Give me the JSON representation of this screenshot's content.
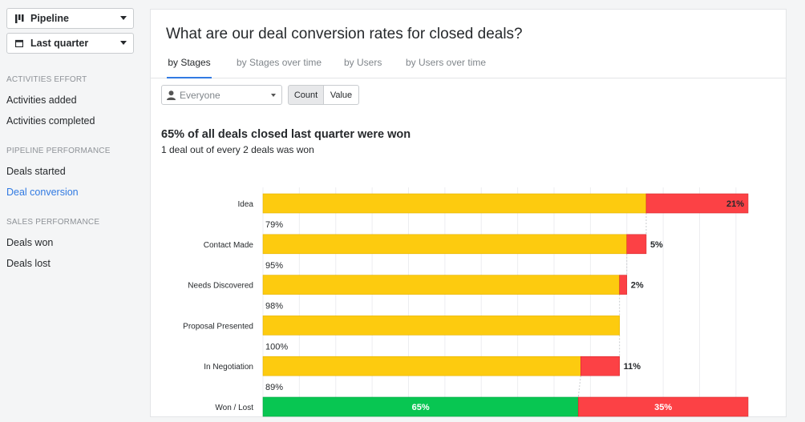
{
  "sidebar": {
    "pipeline_dropdown": {
      "label": "Pipeline",
      "icon": "pipeline-bars-icon"
    },
    "period_dropdown": {
      "label": "Last quarter",
      "icon": "calendar-icon"
    },
    "sections": [
      {
        "title": "ACTIVITIES EFFORT",
        "items": [
          "Activities added",
          "Activities completed"
        ]
      },
      {
        "title": "PIPELINE PERFORMANCE",
        "items": [
          "Deals started",
          "Deal conversion"
        ]
      },
      {
        "title": "SALES PERFORMANCE",
        "items": [
          "Deals won",
          "Deals lost"
        ]
      }
    ],
    "active_item": "Deal conversion"
  },
  "main": {
    "title": "What are our deal conversion rates for closed deals?",
    "tabs": [
      "by Stages",
      "by Stages over time",
      "by Users",
      "by Users over time"
    ],
    "active_tab": "by Stages",
    "user_filter": {
      "value": "Everyone",
      "icon": "user-icon"
    },
    "toggle": {
      "count": "Count",
      "value": "Value",
      "active": "Count"
    },
    "headline": "65% of all deals closed last quarter were won",
    "subline": "1 deal out of every 2 deals was won"
  },
  "colors": {
    "accent": "#317ae2",
    "progress": "#fdcb0f",
    "lost": "#fc4145",
    "won": "#08c652"
  },
  "chart_data": {
    "type": "bar",
    "orientation": "horizontal-stacked-funnel",
    "categories": [
      "Idea",
      "Contact Made",
      "Needs Discovered",
      "Proposal Presented",
      "In Negotiation",
      "Won / Lost"
    ],
    "conversion_labels": [
      "79%",
      "95%",
      "98%",
      "100%",
      "89%"
    ],
    "series": [
      {
        "values": [
          79,
          75,
          73.5,
          73.5,
          65.5,
          65
        ]
      },
      {
        "values": [
          21,
          4,
          1.5,
          0,
          8,
          35
        ]
      }
    ],
    "bar_labels_lost": [
      "21%",
      "5%",
      "2%",
      "",
      "11%",
      "35%"
    ],
    "bar_labels_won": [
      "",
      "",
      "",
      "",
      "",
      "65%"
    ],
    "xlim": [
      0,
      100
    ]
  }
}
